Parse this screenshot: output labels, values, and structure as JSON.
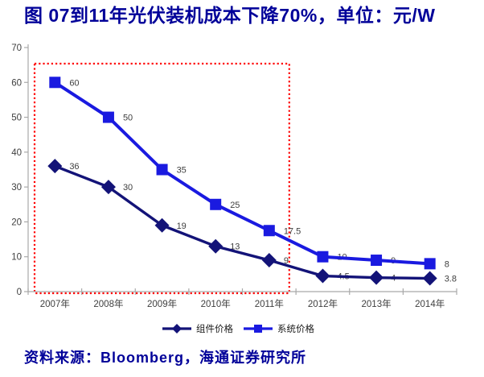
{
  "title": "图 07到11年光伏装机成本下降70%，单位：元/W",
  "source": "资料来源：Bloomberg，海通证券研究所",
  "colors": {
    "title_text": "#000099",
    "source_text": "#000099",
    "axis": "#A9A9A9",
    "tick_label": "#404040",
    "value_label": "#404040",
    "legend_label": "#1A1A1A",
    "module_series": "#131378",
    "system_series": "#1A1AE0",
    "annotation_box": "#FF0000"
  },
  "chart_data": {
    "type": "line",
    "title": "图 07到11年光伏装机成本下降70%，单位：元/W",
    "units": "元/W",
    "categories": [
      "2007年",
      "2008年",
      "2009年",
      "2010年",
      "2011年",
      "2012年",
      "2013年",
      "2014年"
    ],
    "series": [
      {
        "name": "组件价格",
        "marker": "diamond",
        "color": "#131378",
        "values": [
          36,
          30,
          19,
          13,
          9,
          4.5,
          4,
          3.8
        ]
      },
      {
        "name": "系统价格",
        "marker": "square",
        "color": "#1A1AE0",
        "values": [
          60,
          50,
          35,
          25,
          17.5,
          10,
          9,
          8
        ]
      }
    ],
    "xlabel": "",
    "ylabel": "",
    "ylim": [
      0,
      70
    ],
    "yticks": [
      0,
      10,
      20,
      30,
      40,
      50,
      60,
      70
    ],
    "grid": false,
    "legend_position": "bottom",
    "annotation": {
      "type": "dotted-box",
      "color": "#FF0000",
      "start_category": "2007年",
      "end_category": "2011年"
    }
  }
}
